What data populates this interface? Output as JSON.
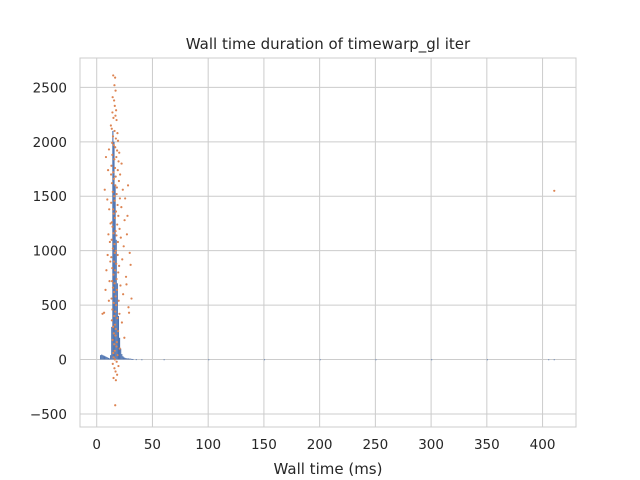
{
  "chart_data": {
    "type": "histogram+scatter",
    "title": "Wall time duration of timewarp_gl iter",
    "xlabel": "Wall time (ms)",
    "ylabel": "",
    "xlim": [
      -15,
      430
    ],
    "ylim": [
      -620,
      2770
    ],
    "xticks": [
      0,
      50,
      100,
      150,
      200,
      250,
      300,
      350,
      400
    ],
    "yticks": [
      -500,
      0,
      500,
      1000,
      1500,
      2000,
      2500
    ],
    "xtick_labels": [
      "0",
      "50",
      "100",
      "150",
      "200",
      "250",
      "300",
      "350",
      "400"
    ],
    "ytick_labels": [
      "−500",
      "0",
      "500",
      "1000",
      "1500",
      "2000",
      "2500"
    ],
    "grid": true,
    "series": [
      {
        "kind": "histogram",
        "color": "#4c72b0",
        "bin_width": 1,
        "bins": [
          {
            "x": 3,
            "count": 40
          },
          {
            "x": 4,
            "count": 45
          },
          {
            "x": 5,
            "count": 40
          },
          {
            "x": 6,
            "count": 35
          },
          {
            "x": 7,
            "count": 30
          },
          {
            "x": 8,
            "count": 25
          },
          {
            "x": 9,
            "count": 20
          },
          {
            "x": 10,
            "count": 15
          },
          {
            "x": 11,
            "count": 10
          },
          {
            "x": 12,
            "count": 40
          },
          {
            "x": 13,
            "count": 300
          },
          {
            "x": 14,
            "count": 2100
          },
          {
            "x": 15,
            "count": 2000
          },
          {
            "x": 16,
            "count": 1600
          },
          {
            "x": 17,
            "count": 1100
          },
          {
            "x": 18,
            "count": 700
          },
          {
            "x": 19,
            "count": 400
          },
          {
            "x": 20,
            "count": 200
          },
          {
            "x": 21,
            "count": 100
          },
          {
            "x": 22,
            "count": 50
          },
          {
            "x": 23,
            "count": 30
          },
          {
            "x": 24,
            "count": 20
          },
          {
            "x": 25,
            "count": 15
          },
          {
            "x": 26,
            "count": 12
          },
          {
            "x": 27,
            "count": 10
          },
          {
            "x": 28,
            "count": 10
          },
          {
            "x": 29,
            "count": 8
          },
          {
            "x": 30,
            "count": 8
          },
          {
            "x": 31,
            "count": 5
          },
          {
            "x": 32,
            "count": 5
          },
          {
            "x": 35,
            "count": 2
          },
          {
            "x": 40,
            "count": 1
          },
          {
            "x": 60,
            "count": 1
          },
          {
            "x": 100,
            "count": 1
          },
          {
            "x": 150,
            "count": 1
          },
          {
            "x": 200,
            "count": 1
          },
          {
            "x": 250,
            "count": 1
          },
          {
            "x": 300,
            "count": 1
          },
          {
            "x": 350,
            "count": 1
          },
          {
            "x": 405,
            "count": 1
          },
          {
            "x": 410,
            "count": 1
          }
        ]
      },
      {
        "kind": "scatter",
        "color": "#dd8452",
        "points": [
          [
            14.8,
            2610
          ],
          [
            16.5,
            2590
          ],
          [
            15.9,
            2520
          ],
          [
            16.9,
            2470
          ],
          [
            14.3,
            2410
          ],
          [
            15.6,
            2380
          ],
          [
            16.2,
            2330
          ],
          [
            17.4,
            2290
          ],
          [
            14.1,
            2270
          ],
          [
            16.8,
            2240
          ],
          [
            15.0,
            2220
          ],
          [
            17.8,
            2200
          ],
          [
            12.7,
            2150
          ],
          [
            13.5,
            2120
          ],
          [
            16.0,
            2100
          ],
          [
            18.6,
            2080
          ],
          [
            14.6,
            2050
          ],
          [
            17.2,
            2030
          ],
          [
            19.1,
            2010
          ],
          [
            13.9,
            1990
          ],
          [
            15.3,
            1970
          ],
          [
            16.6,
            1950
          ],
          [
            18.3,
            1920
          ],
          [
            20.2,
            1900
          ],
          [
            14.0,
            1880
          ],
          [
            17.6,
            1860
          ],
          [
            15.8,
            1840
          ],
          [
            19.6,
            1820
          ],
          [
            22.3,
            1800
          ],
          [
            13.2,
            1780
          ],
          [
            16.4,
            1760
          ],
          [
            18.9,
            1740
          ],
          [
            14.9,
            1720
          ],
          [
            21.0,
            1700
          ],
          [
            17.0,
            1680
          ],
          [
            15.4,
            1660
          ],
          [
            19.9,
            1640
          ],
          [
            13.7,
            1620
          ],
          [
            16.7,
            1600
          ],
          [
            18.1,
            1580
          ],
          [
            23.4,
            1560
          ],
          [
            14.4,
            1540
          ],
          [
            17.9,
            1520
          ],
          [
            15.7,
            1500
          ],
          [
            20.8,
            1480
          ],
          [
            16.1,
            1460
          ],
          [
            13.0,
            1440
          ],
          [
            18.7,
            1420
          ],
          [
            22.1,
            1400
          ],
          [
            14.7,
            1380
          ],
          [
            17.3,
            1360
          ],
          [
            15.2,
            1340
          ],
          [
            19.4,
            1320
          ],
          [
            16.3,
            1300
          ],
          [
            25.0,
            1280
          ],
          [
            13.6,
            1260
          ],
          [
            18.4,
            1240
          ],
          [
            14.2,
            1220
          ],
          [
            20.5,
            1200
          ],
          [
            16.9,
            1180
          ],
          [
            15.1,
            1160
          ],
          [
            17.7,
            1140
          ],
          [
            21.6,
            1120
          ],
          [
            13.4,
            1100
          ],
          [
            19.0,
            1080
          ],
          [
            15.9,
            1060
          ],
          [
            24.2,
            1040
          ],
          [
            14.5,
            1020
          ],
          [
            17.1,
            1000
          ],
          [
            16.2,
            980
          ],
          [
            18.8,
            960
          ],
          [
            13.1,
            940
          ],
          [
            22.9,
            920
          ],
          [
            15.5,
            900
          ],
          [
            17.5,
            880
          ],
          [
            20.1,
            860
          ],
          [
            14.0,
            840
          ],
          [
            16.5,
            820
          ],
          [
            19.3,
            800
          ],
          [
            15.0,
            780
          ],
          [
            26.3,
            760
          ],
          [
            17.8,
            740
          ],
          [
            13.8,
            720
          ],
          [
            16.0,
            700
          ],
          [
            21.3,
            680
          ],
          [
            14.6,
            660
          ],
          [
            18.2,
            640
          ],
          [
            15.6,
            620
          ],
          [
            23.7,
            600
          ],
          [
            16.8,
            580
          ],
          [
            13.3,
            560
          ],
          [
            19.7,
            540
          ],
          [
            15.3,
            520
          ],
          [
            17.4,
            500
          ],
          [
            28.5,
            480
          ],
          [
            14.1,
            460
          ],
          [
            16.6,
            440
          ],
          [
            20.4,
            420
          ],
          [
            15.8,
            400
          ],
          [
            18.5,
            380
          ],
          [
            13.6,
            360
          ],
          [
            22.6,
            340
          ],
          [
            16.4,
            320
          ],
          [
            14.8,
            300
          ],
          [
            17.0,
            280
          ],
          [
            19.2,
            260
          ],
          [
            15.4,
            240
          ],
          [
            16.7,
            220
          ],
          [
            24.8,
            200
          ],
          [
            14.3,
            180
          ],
          [
            18.0,
            160
          ],
          [
            15.7,
            140
          ],
          [
            17.6,
            120
          ],
          [
            20.7,
            100
          ],
          [
            16.1,
            80
          ],
          [
            14.9,
            60
          ],
          [
            18.6,
            40
          ],
          [
            15.2,
            20
          ],
          [
            16.3,
            0
          ],
          [
            17.9,
            -20
          ],
          [
            14.4,
            -40
          ],
          [
            19.5,
            -60
          ],
          [
            15.9,
            -80
          ],
          [
            16.9,
            -110
          ],
          [
            18.3,
            -140
          ],
          [
            15.1,
            -170
          ],
          [
            17.2,
            -190
          ],
          [
            16.6,
            -420
          ],
          [
            27.1,
            1150
          ],
          [
            29.6,
            980
          ],
          [
            30.4,
            870
          ],
          [
            26.7,
            690
          ],
          [
            31.2,
            560
          ],
          [
            29.0,
            430
          ],
          [
            27.6,
            1320
          ],
          [
            25.5,
            1480
          ],
          [
            28.1,
            1600
          ],
          [
            12.4,
            1250
          ],
          [
            11.8,
            1080
          ],
          [
            12.2,
            900
          ],
          [
            11.5,
            720
          ],
          [
            10.9,
            540
          ],
          [
            12.9,
            1700
          ],
          [
            11.2,
            1380
          ],
          [
            10.5,
            1150
          ],
          [
            9.8,
            960
          ],
          [
            8.7,
            820
          ],
          [
            7.9,
            640
          ],
          [
            6.6,
            430
          ],
          [
            5.2,
            420
          ],
          [
            7.2,
            1560
          ],
          [
            8.3,
            1860
          ],
          [
            9.5,
            1470
          ],
          [
            10.2,
            1740
          ],
          [
            11.0,
            1930
          ],
          [
            410.5,
            1550
          ]
        ]
      }
    ]
  }
}
